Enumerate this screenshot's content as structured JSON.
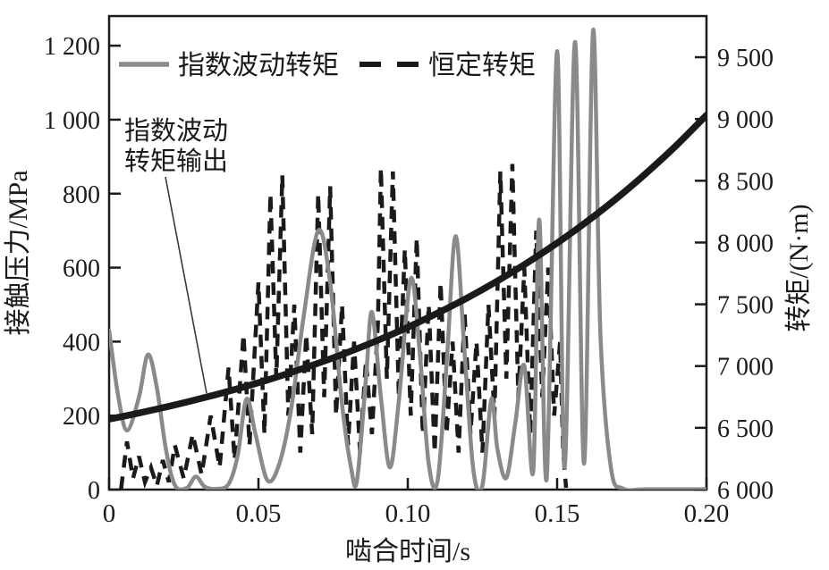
{
  "figure": {
    "background": "#ffffff",
    "frame_color": "#1a1a1a",
    "axes": {
      "x": {
        "title": "啮合时间/s",
        "tick_values": [
          0,
          0.05,
          0.1,
          0.15,
          0.2
        ],
        "tick_labels": [
          "0",
          "0.05",
          "0.10",
          "0.15",
          "0.20"
        ]
      },
      "y_left": {
        "title": "接触压力/MPa",
        "tick_values": [
          0,
          200,
          400,
          600,
          800,
          1000,
          1200
        ],
        "tick_labels": [
          "0",
          "200",
          "400",
          "600",
          "800",
          "1 000",
          "1 200"
        ]
      },
      "y_right": {
        "title": "转矩/(N·m)",
        "tick_values": [
          6000,
          6500,
          7000,
          7500,
          8000,
          8500,
          9000,
          9500
        ],
        "tick_labels": [
          "6 000",
          "6 500",
          "7 000",
          "7 500",
          "8 000",
          "8 500",
          "9 000",
          "9 500"
        ]
      }
    },
    "legend": {
      "position": "top-inside",
      "items": [
        {
          "label": "指数波动转矩",
          "style": "solid",
          "color": "#8a8a8a"
        },
        {
          "label": "恒定转矩",
          "style": "dashed",
          "color": "#1a1a1a"
        }
      ]
    },
    "annotation": {
      "line1": "指数波动",
      "line2": "转矩输出",
      "target": "exponential-torque-output-curve"
    }
  },
  "chart_data": {
    "type": "line",
    "title": "",
    "xlabel": "啮合时间/s",
    "ylabel_left": "接触压力/MPa",
    "ylabel_right": "转矩/(N·m)",
    "xlim": [
      0,
      0.2
    ],
    "ylim_left": [
      0,
      1280
    ],
    "ylim_right": [
      6000,
      9833
    ],
    "grid": false,
    "series": [
      {
        "name": "指数波动转矩",
        "axis": "left",
        "style": "solid",
        "color": "#8a8a8a",
        "width": 4.5,
        "points": [
          [
            0,
            430
          ],
          [
            0.003,
            255
          ],
          [
            0.006,
            160
          ],
          [
            0.01,
            250
          ],
          [
            0.013,
            365
          ],
          [
            0.016,
            275
          ],
          [
            0.019,
            110
          ],
          [
            0.022,
            12
          ],
          [
            0.026,
            4
          ],
          [
            0.029,
            35
          ],
          [
            0.032,
            8
          ],
          [
            0.036,
            2
          ],
          [
            0.04,
            15
          ],
          [
            0.043,
            90
          ],
          [
            0.046,
            245
          ],
          [
            0.049,
            150
          ],
          [
            0.053,
            25
          ],
          [
            0.057,
            70
          ],
          [
            0.061,
            220
          ],
          [
            0.065,
            460
          ],
          [
            0.07,
            700
          ],
          [
            0.074,
            560
          ],
          [
            0.078,
            230
          ],
          [
            0.081,
            60
          ],
          [
            0.083,
            25
          ],
          [
            0.086,
            300
          ],
          [
            0.088,
            480
          ],
          [
            0.091,
            250
          ],
          [
            0.094,
            60
          ],
          [
            0.097,
            240
          ],
          [
            0.101,
            570
          ],
          [
            0.104,
            370
          ],
          [
            0.107,
            70
          ],
          [
            0.11,
            25
          ],
          [
            0.113,
            340
          ],
          [
            0.116,
            685
          ],
          [
            0.119,
            370
          ],
          [
            0.122,
            50
          ],
          [
            0.125,
            12
          ],
          [
            0.128,
            245
          ],
          [
            0.13,
            110
          ],
          [
            0.133,
            32
          ],
          [
            0.136,
            180
          ],
          [
            0.139,
            335
          ],
          [
            0.142,
            50
          ],
          [
            0.144,
            730
          ],
          [
            0.1465,
            30
          ],
          [
            0.15,
            1185
          ],
          [
            0.1525,
            60
          ],
          [
            0.156,
            1210
          ],
          [
            0.159,
            70
          ],
          [
            0.162,
            1240
          ],
          [
            0.1645,
            420
          ],
          [
            0.168,
            60
          ],
          [
            0.172,
            3
          ],
          [
            0.18,
            1
          ],
          [
            0.2,
            1
          ]
        ]
      },
      {
        "name": "恒定转矩",
        "axis": "left",
        "style": "dashed",
        "color": "#1a1a1a",
        "width": 4.5,
        "points": [
          [
            0.004,
            2
          ],
          [
            0.006,
            130
          ],
          [
            0.008,
            30
          ],
          [
            0.01,
            90
          ],
          [
            0.012,
            20
          ],
          [
            0.014,
            60
          ],
          [
            0.016,
            10
          ],
          [
            0.018,
            80
          ],
          [
            0.02,
            20
          ],
          [
            0.022,
            120
          ],
          [
            0.025,
            30
          ],
          [
            0.028,
            150
          ],
          [
            0.031,
            40
          ],
          [
            0.034,
            200
          ],
          [
            0.037,
            60
          ],
          [
            0.04,
            330
          ],
          [
            0.042,
            80
          ],
          [
            0.045,
            420
          ],
          [
            0.047,
            120
          ],
          [
            0.05,
            560
          ],
          [
            0.052,
            150
          ],
          [
            0.054,
            800
          ],
          [
            0.056,
            300
          ],
          [
            0.058,
            850
          ],
          [
            0.06,
            200
          ],
          [
            0.062,
            500
          ],
          [
            0.064,
            100
          ],
          [
            0.066,
            420
          ],
          [
            0.068,
            150
          ],
          [
            0.07,
            800
          ],
          [
            0.072,
            250
          ],
          [
            0.074,
            820
          ],
          [
            0.076,
            200
          ],
          [
            0.078,
            500
          ],
          [
            0.08,
            120
          ],
          [
            0.082,
            400
          ],
          [
            0.084,
            100
          ],
          [
            0.086,
            350
          ],
          [
            0.088,
            150
          ],
          [
            0.09,
            450
          ],
          [
            0.091,
            870
          ],
          [
            0.093,
            300
          ],
          [
            0.095,
            860
          ],
          [
            0.097,
            250
          ],
          [
            0.099,
            650
          ],
          [
            0.101,
            200
          ],
          [
            0.103,
            680
          ],
          [
            0.105,
            150
          ],
          [
            0.107,
            500
          ],
          [
            0.109,
            100
          ],
          [
            0.111,
            560
          ],
          [
            0.113,
            150
          ],
          [
            0.115,
            400
          ],
          [
            0.117,
            100
          ],
          [
            0.119,
            480
          ],
          [
            0.121,
            150
          ],
          [
            0.123,
            400
          ],
          [
            0.125,
            100
          ],
          [
            0.127,
            500
          ],
          [
            0.129,
            200
          ],
          [
            0.131,
            860
          ],
          [
            0.133,
            300
          ],
          [
            0.135,
            880
          ],
          [
            0.137,
            250
          ],
          [
            0.139,
            600
          ],
          [
            0.141,
            150
          ],
          [
            0.143,
            700
          ],
          [
            0.145,
            250
          ],
          [
            0.147,
            600
          ],
          [
            0.149,
            200
          ],
          [
            0.151,
            400
          ],
          [
            0.152,
            100
          ],
          [
            0.153,
            5
          ]
        ]
      },
      {
        "name": "指数波动转矩输出",
        "axis": "right",
        "style": "solid-thick",
        "color": "#1a1a1a",
        "width": 7.5,
        "points": [
          [
            0,
            6570
          ],
          [
            0.01,
            6620
          ],
          [
            0.02,
            6674
          ],
          [
            0.03,
            6733
          ],
          [
            0.04,
            6796
          ],
          [
            0.05,
            6865
          ],
          [
            0.06,
            6941
          ],
          [
            0.07,
            7023
          ],
          [
            0.08,
            7112
          ],
          [
            0.09,
            7209
          ],
          [
            0.1,
            7314
          ],
          [
            0.11,
            7429
          ],
          [
            0.12,
            7553
          ],
          [
            0.13,
            7689
          ],
          [
            0.14,
            7836
          ],
          [
            0.15,
            7996
          ],
          [
            0.16,
            8170
          ],
          [
            0.17,
            8359
          ],
          [
            0.18,
            8565
          ],
          [
            0.19,
            8788
          ],
          [
            0.2,
            9031
          ]
        ]
      }
    ]
  }
}
